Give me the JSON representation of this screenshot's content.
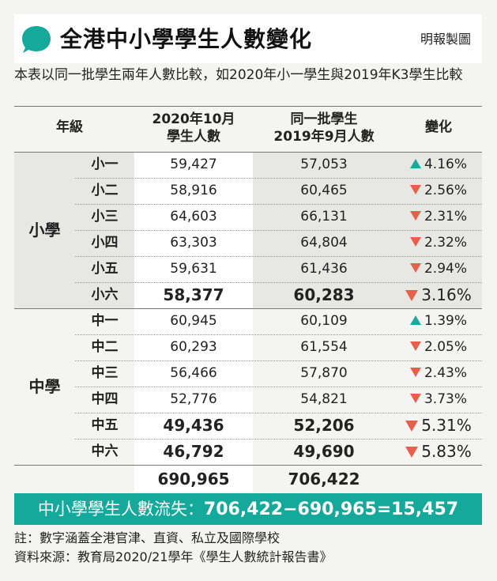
{
  "header": {
    "title": "全港中小學學生人數變化",
    "credit": "明報製圖",
    "subtitle": "本表以同一批學生兩年人數比較，如2020年小一學生與2019年K3學生比較"
  },
  "colors": {
    "accent": "#14a99b",
    "up": "#1ea89b",
    "down": "#e8604c"
  },
  "table": {
    "headers": {
      "grade": "年級",
      "col1_line1": "2020年10月",
      "col1_line2": "學生人數",
      "col2_line1": "同一批學生",
      "col2_line2": "2019年9月人數",
      "change": "變化"
    },
    "groups": [
      {
        "label": "小學"
      },
      {
        "label": "中學"
      }
    ],
    "rows": [
      {
        "grade": "小一",
        "y2020": "59,427",
        "y2019": "57,053",
        "direction": "up",
        "change": "4.16%"
      },
      {
        "grade": "小二",
        "y2020": "58,916",
        "y2019": "60,465",
        "direction": "down",
        "change": "2.56%"
      },
      {
        "grade": "小三",
        "y2020": "64,603",
        "y2019": "66,131",
        "direction": "down",
        "change": "2.31%"
      },
      {
        "grade": "小四",
        "y2020": "63,303",
        "y2019": "64,804",
        "direction": "down",
        "change": "2.32%"
      },
      {
        "grade": "小五",
        "y2020": "59,631",
        "y2019": "61,436",
        "direction": "down",
        "change": "2.94%"
      },
      {
        "grade": "小六",
        "y2020": "58,377",
        "y2019": "60,283",
        "direction": "down",
        "change": "3.16%"
      },
      {
        "grade": "中一",
        "y2020": "60,945",
        "y2019": "60,109",
        "direction": "up",
        "change": "1.39%"
      },
      {
        "grade": "中二",
        "y2020": "60,293",
        "y2019": "61,554",
        "direction": "down",
        "change": "2.05%"
      },
      {
        "grade": "中三",
        "y2020": "56,466",
        "y2019": "57,870",
        "direction": "down",
        "change": "2.43%"
      },
      {
        "grade": "中四",
        "y2020": "52,776",
        "y2019": "54,821",
        "direction": "down",
        "change": "3.73%"
      },
      {
        "grade": "中五",
        "y2020": "49,436",
        "y2019": "52,206",
        "direction": "down",
        "change": "5.31%"
      },
      {
        "grade": "中六",
        "y2020": "46,792",
        "y2019": "49,690",
        "direction": "down",
        "change": "5.83%"
      }
    ],
    "totals": {
      "y2020": "690,965",
      "y2019": "706,422"
    }
  },
  "summary": {
    "label": "中小學學生人數流失：",
    "formula": "706,422−690,965=15,457"
  },
  "notes": {
    "note": "註：數字涵蓋全港官津、直資、私立及國際學校",
    "source": "資料來源：教育局2020/21學年《學生人數統計報告書》"
  },
  "chart_data": {
    "type": "table",
    "title": "全港中小學學生人數變化",
    "columns": [
      "年級",
      "2020年10月學生人數",
      "同一批學生2019年9月人數",
      "變化"
    ],
    "groups": [
      "小學",
      "中學"
    ],
    "categories": [
      "小一",
      "小二",
      "小三",
      "小四",
      "小五",
      "小六",
      "中一",
      "中二",
      "中三",
      "中四",
      "中五",
      "中六"
    ],
    "series": [
      {
        "name": "2020年10月學生人數",
        "values": [
          59427,
          58916,
          64603,
          63303,
          59631,
          58377,
          60945,
          60293,
          56466,
          52776,
          49436,
          46792
        ]
      },
      {
        "name": "同一批學生2019年9月人數",
        "values": [
          57053,
          60465,
          66131,
          64804,
          61436,
          60283,
          60109,
          61554,
          57870,
          54821,
          52206,
          49690
        ]
      },
      {
        "name": "變化",
        "values": [
          4.16,
          -2.56,
          -2.31,
          -2.32,
          -2.94,
          -3.16,
          1.39,
          -2.05,
          -2.43,
          -3.73,
          -5.31,
          -5.83
        ]
      }
    ],
    "totals": [
      690965,
      706422
    ],
    "net_loss": 15457
  }
}
